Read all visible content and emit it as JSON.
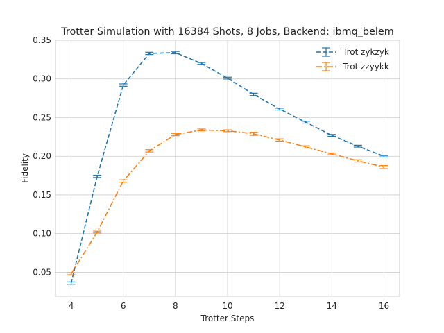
{
  "chart_data": {
    "type": "line",
    "title": "Trotter Simulation with 16384 Shots, 8 Jobs, Backend: ibmq_belem",
    "xlabel": "Trotter Steps",
    "ylabel": "Fidelity",
    "xlim": [
      3.4,
      16.6
    ],
    "ylim": [
      0.019,
      0.35
    ],
    "xticks": [
      4,
      6,
      8,
      10,
      12,
      14,
      16
    ],
    "yticks": [
      0.05,
      0.1,
      0.15,
      0.2,
      0.25,
      0.3,
      0.35
    ],
    "ytick_labels": [
      "0.05",
      "0.10",
      "0.15",
      "0.20",
      "0.25",
      "0.30",
      "0.35"
    ],
    "grid": true,
    "legend_position": "top-right",
    "x": [
      4,
      5,
      6,
      7,
      8,
      9,
      10,
      11,
      12,
      13,
      14,
      15,
      16
    ],
    "series": [
      {
        "name": "Trot zykzyk",
        "color": "#1f77b4",
        "linestyle": "dashed",
        "values": [
          0.036,
          0.174,
          0.292,
          0.333,
          0.334,
          0.32,
          0.301,
          0.28,
          0.261,
          0.244,
          0.227,
          0.213,
          0.2
        ],
        "errors": [
          0.0015,
          0.0015,
          0.0015,
          0.0015,
          0.0015,
          0.0012,
          0.0012,
          0.0015,
          0.0012,
          0.0012,
          0.0012,
          0.0012,
          0.001
        ]
      },
      {
        "name": "Trot zzyykk",
        "color": "#ff7f0e",
        "linestyle": "dashdot",
        "values": [
          0.048,
          0.102,
          0.168,
          0.207,
          0.228,
          0.234,
          0.233,
          0.229,
          0.221,
          0.212,
          0.203,
          0.194,
          0.186
        ],
        "errors": [
          0.0012,
          0.0012,
          0.0015,
          0.0015,
          0.0015,
          0.0012,
          0.0012,
          0.002,
          0.0015,
          0.0015,
          0.001,
          0.0015,
          0.002
        ]
      }
    ]
  }
}
